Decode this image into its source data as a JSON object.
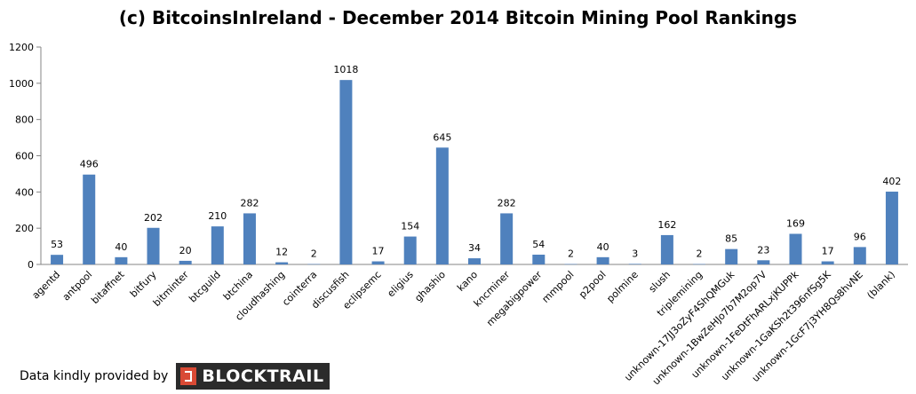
{
  "chart_data": {
    "type": "bar",
    "title": "(c) BitcoinsInIreland - December 2014 Bitcoin Mining Pool Rankings",
    "categories": [
      "agentd",
      "antpool",
      "bitaffnet",
      "bitfury",
      "bitminter",
      "btcguild",
      "btchina",
      "cloudhashing",
      "cointerra",
      "discusfish",
      "eclipsemc",
      "eligius",
      "ghashio",
      "kano",
      "kncminer",
      "megabigpower",
      "mmpool",
      "p2pool",
      "polmine",
      "slush",
      "triplemining",
      "unknown-17JJ3oZyF4ShQMGuk",
      "unknown-1BwZeHJo7b7M2op7V",
      "unknown-1FeDtFhARLxjKUPPk",
      "unknown-1GaKSh2t396nfSg5K",
      "unknown-1GcF7j3YH8Qs8hvNE",
      "(blank)"
    ],
    "values": [
      53,
      496,
      40,
      202,
      20,
      210,
      282,
      12,
      2,
      1018,
      17,
      154,
      645,
      34,
      282,
      54,
      2,
      40,
      3,
      162,
      2,
      85,
      23,
      169,
      17,
      96,
      402
    ],
    "ylim": [
      0,
      1200
    ],
    "yticks": [
      0,
      200,
      400,
      600,
      800,
      1000,
      1200
    ],
    "grid": false,
    "bar_color": "#4f81bd"
  },
  "footer": {
    "credit": "Data kindly provided by",
    "logo_text": "BLOCKTRAIL"
  }
}
